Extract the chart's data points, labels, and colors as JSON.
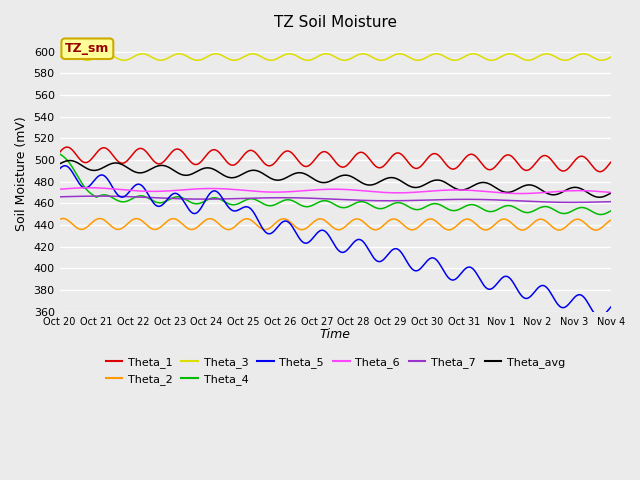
{
  "title": "TZ Soil Moisture",
  "xlabel": "Time",
  "ylabel": "Soil Moisture (mV)",
  "ylim": [
    360,
    615
  ],
  "yticks": [
    360,
    380,
    400,
    420,
    440,
    460,
    480,
    500,
    520,
    540,
    560,
    580,
    600
  ],
  "bg_color": "#ebebeb",
  "grid_color": "#ffffff",
  "annotation_text": "TZ_sm",
  "annotation_bg": "#ffff99",
  "annotation_border": "#ccaa00",
  "annotation_text_color": "#990000",
  "series_colors": {
    "Theta_1": "#dd0000",
    "Theta_2": "#ff9900",
    "Theta_3": "#dddd00",
    "Theta_4": "#00bb00",
    "Theta_5": "#0000ee",
    "Theta_6": "#ff44ff",
    "Theta_7": "#9933cc",
    "Theta_avg": "#000000"
  },
  "x_tick_labels": [
    "Oct 20",
    "Oct 21",
    "Oct 22",
    "Oct 23",
    "Oct 24",
    "Oct 25",
    "Oct 26",
    "Oct 27",
    "Oct 28",
    "Oct 29",
    "Oct 30",
    "Oct 31",
    "Nov 1",
    "Nov 2",
    "Nov 3",
    "Nov 4"
  ],
  "n_points": 1500
}
